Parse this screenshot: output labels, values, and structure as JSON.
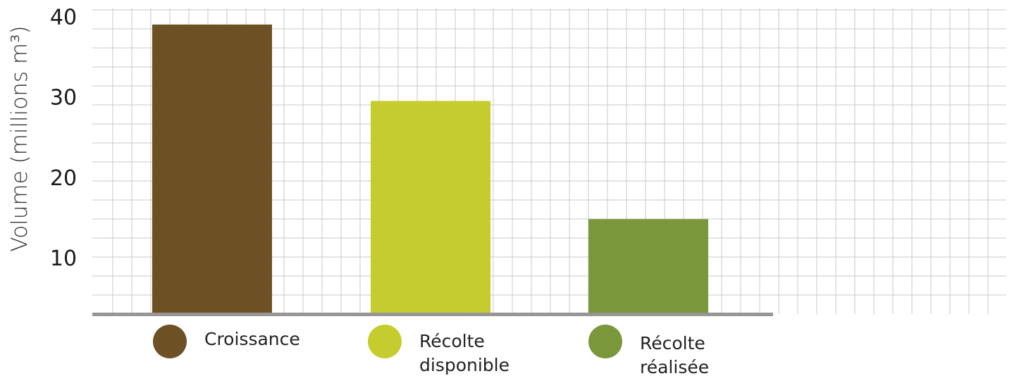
{
  "chart_data": {
    "type": "bar",
    "ylabel": "Volume (millions m³)",
    "ylim": [
      3,
      41
    ],
    "yticks": [
      10,
      20,
      30,
      40
    ],
    "grid": true,
    "categories": [
      "Croissance",
      "Récolte disponible",
      "Récolte réalisée"
    ],
    "values": [
      39,
      29.5,
      14.8
    ],
    "colors": [
      "#6d5125",
      "#c5cd2e",
      "#7a973b"
    ],
    "legend": {
      "placement": "bottom",
      "entries": [
        {
          "label_lines": [
            "Croissance"
          ]
        },
        {
          "label_lines": [
            "Récolte",
            "disponible"
          ]
        },
        {
          "label_lines": [
            "Récolte",
            "réalisée"
          ]
        }
      ]
    },
    "grid_color": "#c8c8c8",
    "baseline_color": "#969696"
  }
}
